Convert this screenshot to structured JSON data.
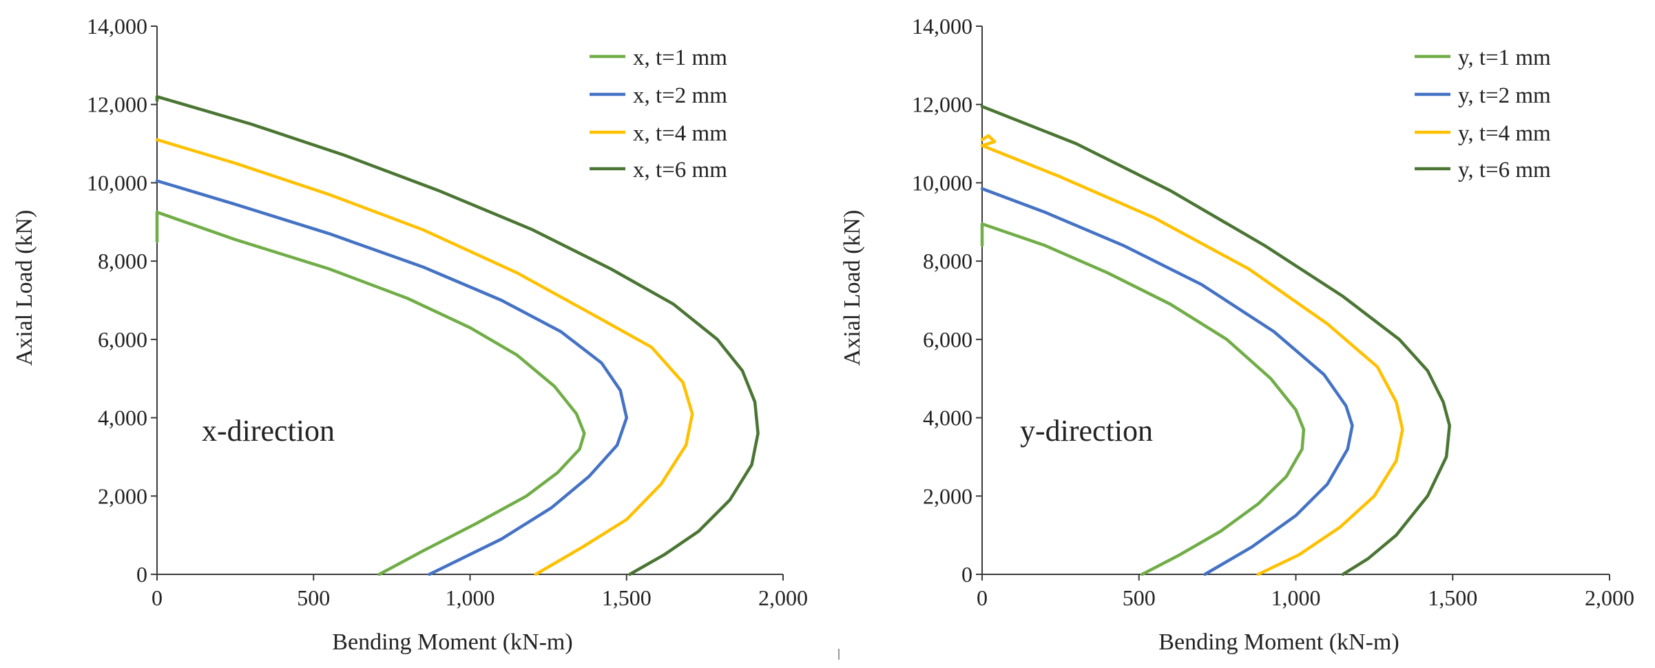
{
  "chart_data": [
    {
      "type": "line",
      "title": "",
      "xlabel": "Bending Moment (kN-m)",
      "ylabel": "Axial Load (kN)",
      "xlim": [
        0,
        2000
      ],
      "ylim": [
        0,
        14000
      ],
      "x_ticks": [
        0,
        500,
        1000,
        1500,
        2000
      ],
      "x_tick_labels": [
        "0",
        "500",
        "1,000",
        "1,500",
        "2,000"
      ],
      "y_ticks": [
        0,
        2000,
        4000,
        6000,
        8000,
        10000,
        12000,
        14000
      ],
      "y_tick_labels": [
        "0",
        "2,000",
        "4,000",
        "6,000",
        "8,000",
        "10,000",
        "12,000",
        "14,000"
      ],
      "grid": false,
      "legend_position": "top-right",
      "annotation": "x-direction",
      "series": [
        {
          "name": "x, t=1 mm",
          "color": "#70ad47",
          "points": [
            [
              0,
              8500
            ],
            [
              0,
              9250
            ],
            [
              250,
              8550
            ],
            [
              550,
              7800
            ],
            [
              800,
              7050
            ],
            [
              1000,
              6300
            ],
            [
              1150,
              5600
            ],
            [
              1270,
              4800
            ],
            [
              1340,
              4100
            ],
            [
              1365,
              3600
            ],
            [
              1350,
              3200
            ],
            [
              1280,
              2600
            ],
            [
              1180,
              2000
            ],
            [
              1020,
              1300
            ],
            [
              850,
              600
            ],
            [
              710,
              0
            ]
          ]
        },
        {
          "name": "x, t=2 mm",
          "color": "#4472c4",
          "points": [
            [
              0,
              10050
            ],
            [
              250,
              9450
            ],
            [
              550,
              8700
            ],
            [
              850,
              7850
            ],
            [
              1100,
              7000
            ],
            [
              1290,
              6200
            ],
            [
              1420,
              5400
            ],
            [
              1480,
              4700
            ],
            [
              1500,
              4000
            ],
            [
              1470,
              3300
            ],
            [
              1380,
              2500
            ],
            [
              1260,
              1700
            ],
            [
              1100,
              900
            ],
            [
              870,
              0
            ]
          ]
        },
        {
          "name": "x, t=4 mm",
          "color": "#ffc000",
          "points": [
            [
              0,
              11100
            ],
            [
              250,
              10500
            ],
            [
              550,
              9700
            ],
            [
              850,
              8800
            ],
            [
              1150,
              7700
            ],
            [
              1400,
              6600
            ],
            [
              1580,
              5800
            ],
            [
              1680,
              4900
            ],
            [
              1710,
              4100
            ],
            [
              1690,
              3300
            ],
            [
              1610,
              2300
            ],
            [
              1500,
              1400
            ],
            [
              1360,
              700
            ],
            [
              1210,
              0
            ]
          ]
        },
        {
          "name": "x, t=6 mm",
          "color": "#4a7533",
          "points": [
            [
              0,
              12100
            ],
            [
              0,
              12200
            ],
            [
              300,
              11500
            ],
            [
              600,
              10700
            ],
            [
              900,
              9800
            ],
            [
              1200,
              8800
            ],
            [
              1450,
              7800
            ],
            [
              1650,
              6900
            ],
            [
              1790,
              6000
            ],
            [
              1870,
              5200
            ],
            [
              1910,
              4400
            ],
            [
              1920,
              3600
            ],
            [
              1900,
              2800
            ],
            [
              1830,
              1900
            ],
            [
              1730,
              1100
            ],
            [
              1620,
              500
            ],
            [
              1510,
              0
            ]
          ]
        }
      ]
    },
    {
      "type": "line",
      "title": "",
      "xlabel": "Bending Moment (kN-m)",
      "ylabel": "Axial Load (kN)",
      "xlim": [
        0,
        2000
      ],
      "ylim": [
        0,
        14000
      ],
      "x_ticks": [
        0,
        500,
        1000,
        1500,
        2000
      ],
      "x_tick_labels": [
        "0",
        "500",
        "1,000",
        "1,500",
        "2,000"
      ],
      "y_ticks": [
        0,
        2000,
        4000,
        6000,
        8000,
        10000,
        12000,
        14000
      ],
      "y_tick_labels": [
        "0",
        "2,000",
        "4,000",
        "6,000",
        "8,000",
        "10,000",
        "12,000",
        "14,000"
      ],
      "grid": false,
      "legend_position": "top-right",
      "annotation": "y-direction",
      "series": [
        {
          "name": "y, t=1 mm",
          "color": "#70ad47",
          "points": [
            [
              0,
              8400
            ],
            [
              0,
              8950
            ],
            [
              200,
              8400
            ],
            [
              400,
              7700
            ],
            [
              600,
              6900
            ],
            [
              780,
              6000
            ],
            [
              920,
              5000
            ],
            [
              1000,
              4200
            ],
            [
              1025,
              3700
            ],
            [
              1020,
              3200
            ],
            [
              970,
              2500
            ],
            [
              880,
              1800
            ],
            [
              760,
              1100
            ],
            [
              630,
              500
            ],
            [
              510,
              0
            ]
          ]
        },
        {
          "name": "y, t=2 mm",
          "color": "#4472c4",
          "points": [
            [
              0,
              9850
            ],
            [
              200,
              9250
            ],
            [
              450,
              8400
            ],
            [
              700,
              7400
            ],
            [
              930,
              6200
            ],
            [
              1090,
              5100
            ],
            [
              1160,
              4300
            ],
            [
              1180,
              3800
            ],
            [
              1165,
              3200
            ],
            [
              1100,
              2300
            ],
            [
              1000,
              1500
            ],
            [
              860,
              700
            ],
            [
              710,
              0
            ]
          ]
        },
        {
          "name": "y, t=4 mm",
          "color": "#ffc000",
          "points": [
            [
              0,
              11100
            ],
            [
              20,
              11200
            ],
            [
              40,
              11050
            ],
            [
              0,
              10950
            ],
            [
              250,
              10150
            ],
            [
              550,
              9100
            ],
            [
              850,
              7800
            ],
            [
              1100,
              6400
            ],
            [
              1260,
              5300
            ],
            [
              1320,
              4400
            ],
            [
              1340,
              3700
            ],
            [
              1320,
              2900
            ],
            [
              1250,
              2000
            ],
            [
              1140,
              1200
            ],
            [
              1010,
              500
            ],
            [
              880,
              0
            ]
          ]
        },
        {
          "name": "y, t=6 mm",
          "color": "#4a7533",
          "points": [
            [
              0,
              11950
            ],
            [
              300,
              11000
            ],
            [
              600,
              9800
            ],
            [
              900,
              8400
            ],
            [
              1150,
              7100
            ],
            [
              1330,
              6000
            ],
            [
              1420,
              5200
            ],
            [
              1470,
              4400
            ],
            [
              1490,
              3800
            ],
            [
              1480,
              3000
            ],
            [
              1420,
              2000
            ],
            [
              1320,
              1000
            ],
            [
              1230,
              400
            ],
            [
              1150,
              0
            ]
          ]
        }
      ]
    }
  ]
}
